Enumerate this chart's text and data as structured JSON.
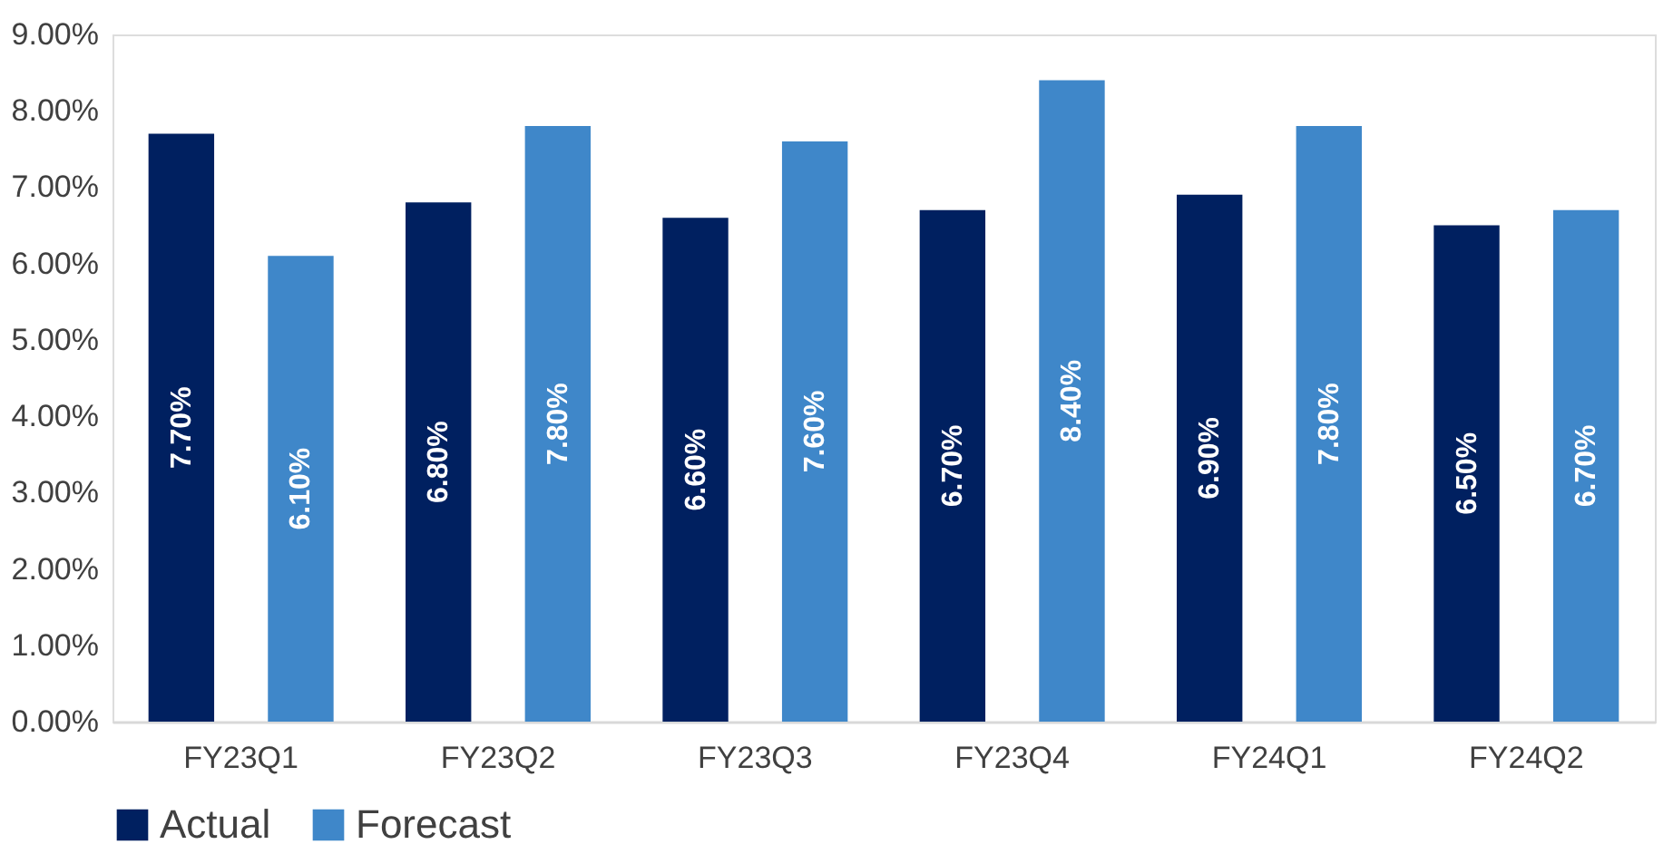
{
  "chart_data": {
    "type": "bar",
    "categories": [
      "FY23Q1",
      "FY23Q2",
      "FY23Q3",
      "FY23Q4",
      "FY24Q1",
      "FY24Q2"
    ],
    "series": [
      {
        "name": "Actual",
        "color": "#002060",
        "values": [
          7.7,
          6.8,
          6.6,
          6.7,
          6.9,
          6.5
        ],
        "value_labels": [
          "7.70%",
          "6.80%",
          "6.60%",
          "6.70%",
          "6.90%",
          "6.50%"
        ]
      },
      {
        "name": "Forecast",
        "color": "#3f87c9",
        "values": [
          6.1,
          7.8,
          7.6,
          8.4,
          7.8,
          6.7
        ],
        "value_labels": [
          "6.10%",
          "7.80%",
          "7.60%",
          "8.40%",
          "7.80%",
          "6.70%"
        ]
      }
    ],
    "ylim": [
      0,
      9
    ],
    "yticks": [
      {
        "value": 0,
        "label": "0.00%"
      },
      {
        "value": 1,
        "label": "1.00%"
      },
      {
        "value": 2,
        "label": "2.00%"
      },
      {
        "value": 3,
        "label": "3.00%"
      },
      {
        "value": 4,
        "label": "4.00%"
      },
      {
        "value": 5,
        "label": "5.00%"
      },
      {
        "value": 6,
        "label": "6.00%"
      },
      {
        "value": 7,
        "label": "7.00%"
      },
      {
        "value": 8,
        "label": "8.00%"
      },
      {
        "value": 9,
        "label": "9.00%"
      }
    ],
    "grid": false,
    "legend": "bottom"
  }
}
